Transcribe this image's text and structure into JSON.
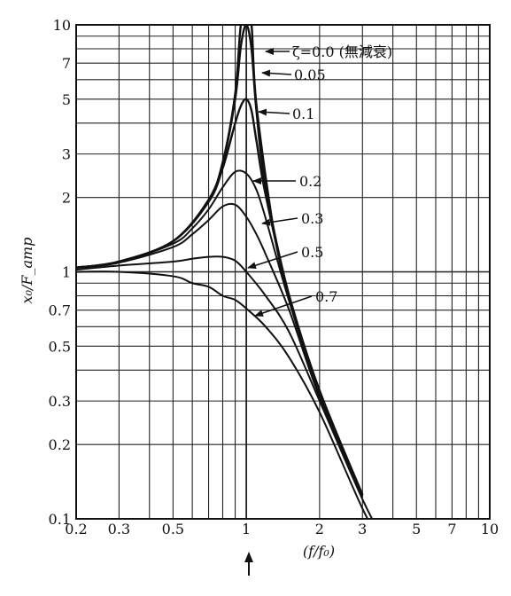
{
  "chart_data": {
    "type": "line",
    "xscale": "log",
    "yscale": "log",
    "xlim": [
      0.2,
      10
    ],
    "ylim": [
      0.1,
      10
    ],
    "xticks": [
      {
        "v": 0.2,
        "label": "0.2"
      },
      {
        "v": 0.3,
        "label": "0.3"
      },
      {
        "v": 0.5,
        "label": "0.5"
      },
      {
        "v": 1,
        "label": "1"
      },
      {
        "v": 2,
        "label": "2"
      },
      {
        "v": 3,
        "label": "3"
      },
      {
        "v": 5,
        "label": "5"
      },
      {
        "v": 7,
        "label": "7"
      },
      {
        "v": 10,
        "label": "10"
      }
    ],
    "yticks": [
      {
        "v": 0.1,
        "label": "0.1"
      },
      {
        "v": 0.2,
        "label": "0.2"
      },
      {
        "v": 0.3,
        "label": "0.3"
      },
      {
        "v": 0.5,
        "label": "0.5"
      },
      {
        "v": 0.7,
        "label": "0.7"
      },
      {
        "v": 1,
        "label": "1"
      },
      {
        "v": 2,
        "label": "2"
      },
      {
        "v": 3,
        "label": "3"
      },
      {
        "v": 5,
        "label": "5"
      },
      {
        "v": 7,
        "label": "7"
      },
      {
        "v": 10,
        "label": "10"
      }
    ],
    "xlabel": "(f/f₀)",
    "ylabel": "x₀/F_amp",
    "grid": true,
    "series": [
      {
        "name": "ζ=0.0 (無減衰)",
        "x": [
          0.2,
          0.3,
          0.5,
          0.7,
          0.8,
          0.9,
          0.95,
          1.0,
          1.05,
          1.1,
          1.3,
          1.5,
          2.0,
          3.0
        ],
        "y": [
          1.04,
          1.1,
          1.33,
          1.96,
          2.78,
          5.26,
          10,
          10,
          10,
          4.76,
          1.45,
          0.8,
          0.33,
          0.125
        ]
      },
      {
        "name": "0.05",
        "x": [
          0.2,
          0.3,
          0.5,
          0.7,
          0.8,
          0.9,
          0.95,
          1.0,
          1.05,
          1.1,
          1.2,
          1.5,
          2.0,
          3.0
        ],
        "y": [
          1.04,
          1.1,
          1.33,
          1.95,
          2.75,
          5.0,
          8.2,
          10,
          8.0,
          4.5,
          2.2,
          0.8,
          0.33,
          0.125
        ]
      },
      {
        "name": "0.1",
        "x": [
          0.2,
          0.3,
          0.5,
          0.7,
          0.8,
          0.9,
          0.95,
          1.0,
          1.05,
          1.1,
          1.2,
          1.5,
          2.0,
          3.0
        ],
        "y": [
          1.04,
          1.1,
          1.33,
          1.92,
          2.63,
          4.0,
          4.7,
          5.0,
          4.5,
          3.4,
          2.05,
          0.79,
          0.33,
          0.125
        ]
      },
      {
        "name": "0.2",
        "x": [
          0.2,
          0.3,
          0.5,
          0.6,
          0.7,
          0.8,
          0.9,
          1.0,
          1.1,
          1.2,
          1.5,
          2.0,
          3.0
        ],
        "y": [
          1.04,
          1.09,
          1.3,
          1.5,
          1.79,
          2.2,
          2.54,
          2.5,
          2.15,
          1.65,
          0.76,
          0.32,
          0.124
        ]
      },
      {
        "name": "0.3",
        "x": [
          0.2,
          0.3,
          0.5,
          0.6,
          0.7,
          0.8,
          0.9,
          1.0,
          1.1,
          1.2,
          1.5,
          2.0,
          3.0
        ],
        "y": [
          1.04,
          1.09,
          1.26,
          1.42,
          1.62,
          1.84,
          1.87,
          1.67,
          1.42,
          1.18,
          0.7,
          0.31,
          0.122
        ]
      },
      {
        "name": "0.5",
        "x": [
          0.2,
          0.3,
          0.5,
          0.6,
          0.7,
          0.8,
          0.9,
          1.0,
          1.2,
          1.5,
          2.0,
          3.0,
          3.6
        ],
        "y": [
          1.02,
          1.06,
          1.1,
          1.13,
          1.15,
          1.15,
          1.11,
          1.0,
          0.8,
          0.57,
          0.3,
          0.12,
          0.085
        ]
      },
      {
        "name": "0.7",
        "x": [
          0.2,
          0.3,
          0.5,
          0.6,
          0.7,
          0.8,
          0.9,
          1.0,
          1.2,
          1.5,
          2.0,
          3.0,
          3.6
        ],
        "y": [
          1.0,
          1.0,
          0.96,
          0.9,
          0.87,
          0.8,
          0.77,
          0.71,
          0.6,
          0.45,
          0.27,
          0.11,
          0.08
        ]
      }
    ]
  }
}
